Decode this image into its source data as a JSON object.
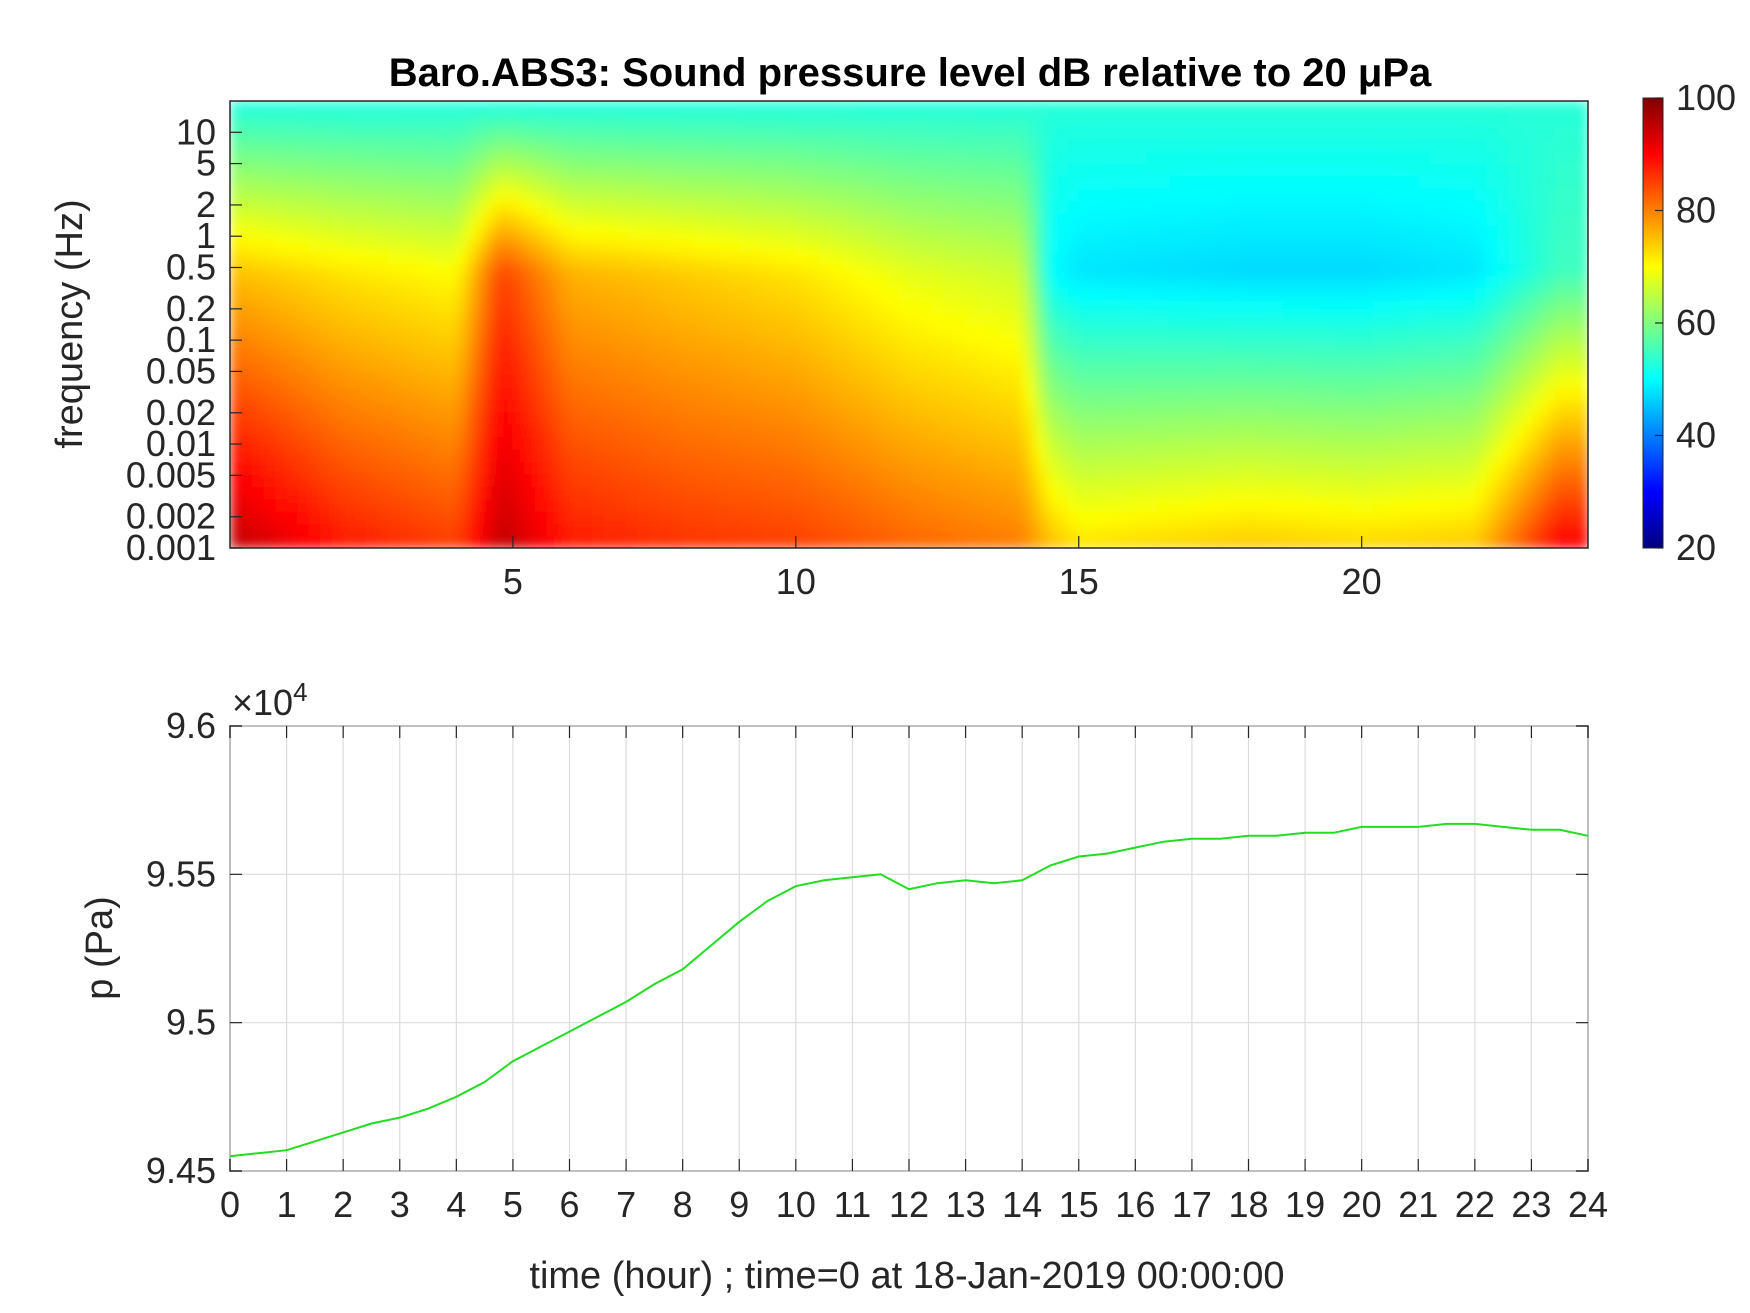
{
  "chart_data": [
    {
      "type": "heatmap",
      "title": "Baro.ABS3: Sound pressure level dB relative to 20 μPa",
      "ylabel": "frequency (Hz)",
      "xlabel": "",
      "x_ticks": [
        "5",
        "10",
        "15",
        "20"
      ],
      "x_range": [
        0,
        24
      ],
      "y_ticks": [
        "10",
        "5",
        "2",
        "1",
        "0.5",
        "0.2",
        "0.1",
        "0.05",
        "0.02",
        "0.01",
        "0.005",
        "0.002",
        "0.001"
      ],
      "y_range": [
        0.001,
        20
      ],
      "y_scale": "log",
      "colormap": "jet",
      "colorbar": {
        "ticks": [
          "100",
          "80",
          "60",
          "40",
          "20"
        ],
        "range": [
          20,
          100
        ]
      },
      "description_points": {
        "time_hours": [
          0,
          2,
          4,
          4.8,
          6,
          8,
          10,
          12,
          14,
          14.5,
          15,
          18,
          20,
          22,
          23.5
        ],
        "low_freq_level_db": [
          95,
          88,
          85,
          95,
          88,
          86,
          85,
          82,
          80,
          75,
          72,
          74,
          73,
          74,
          90
        ],
        "mid_freq_level_db": [
          75,
          72,
          70,
          85,
          76,
          74,
          72,
          68,
          66,
          50,
          48,
          47,
          47,
          48,
          55
        ]
      }
    },
    {
      "type": "line",
      "title": "",
      "xlabel": "time (hour) ; time=0 at 18-Jan-2019 00:00:00",
      "ylabel": "p (Pa)",
      "y_exponent_label": "×10",
      "y_exponent_power": "4",
      "x_ticks": [
        "0",
        "1",
        "2",
        "3",
        "4",
        "5",
        "6",
        "7",
        "8",
        "9",
        "10",
        "11",
        "12",
        "13",
        "14",
        "15",
        "16",
        "17",
        "18",
        "19",
        "20",
        "21",
        "22",
        "23",
        "24"
      ],
      "y_ticks": [
        "9.6",
        "9.55",
        "9.5",
        "9.45"
      ],
      "xlim": [
        0,
        24
      ],
      "ylim": [
        9.45,
        9.6
      ],
      "grid": true,
      "line_color": "#22dd22",
      "series": [
        {
          "x": [
            0,
            0.5,
            1,
            1.5,
            2,
            2.5,
            3,
            3.5,
            4,
            4.5,
            5,
            5.5,
            6,
            6.5,
            7,
            7.5,
            8,
            8.5,
            9,
            9.5,
            10,
            10.5,
            11,
            11.5,
            12,
            12.5,
            13,
            13.5,
            14,
            14.5,
            15,
            15.5,
            16,
            16.5,
            17,
            17.5,
            18,
            18.5,
            19,
            19.5,
            20,
            20.5,
            21,
            21.5,
            22,
            22.5,
            23,
            23.5,
            24
          ],
          "y": [
            9.455,
            9.456,
            9.457,
            9.46,
            9.463,
            9.466,
            9.468,
            9.471,
            9.475,
            9.48,
            9.487,
            9.492,
            9.497,
            9.502,
            9.507,
            9.513,
            9.518,
            9.526,
            9.534,
            9.541,
            9.546,
            9.548,
            9.549,
            9.55,
            9.545,
            9.547,
            9.548,
            9.547,
            9.548,
            9.553,
            9.556,
            9.557,
            9.559,
            9.561,
            9.562,
            9.562,
            9.563,
            9.563,
            9.564,
            9.564,
            9.566,
            9.566,
            9.566,
            9.567,
            9.567,
            9.566,
            9.565,
            9.565,
            9.563
          ]
        }
      ]
    }
  ]
}
